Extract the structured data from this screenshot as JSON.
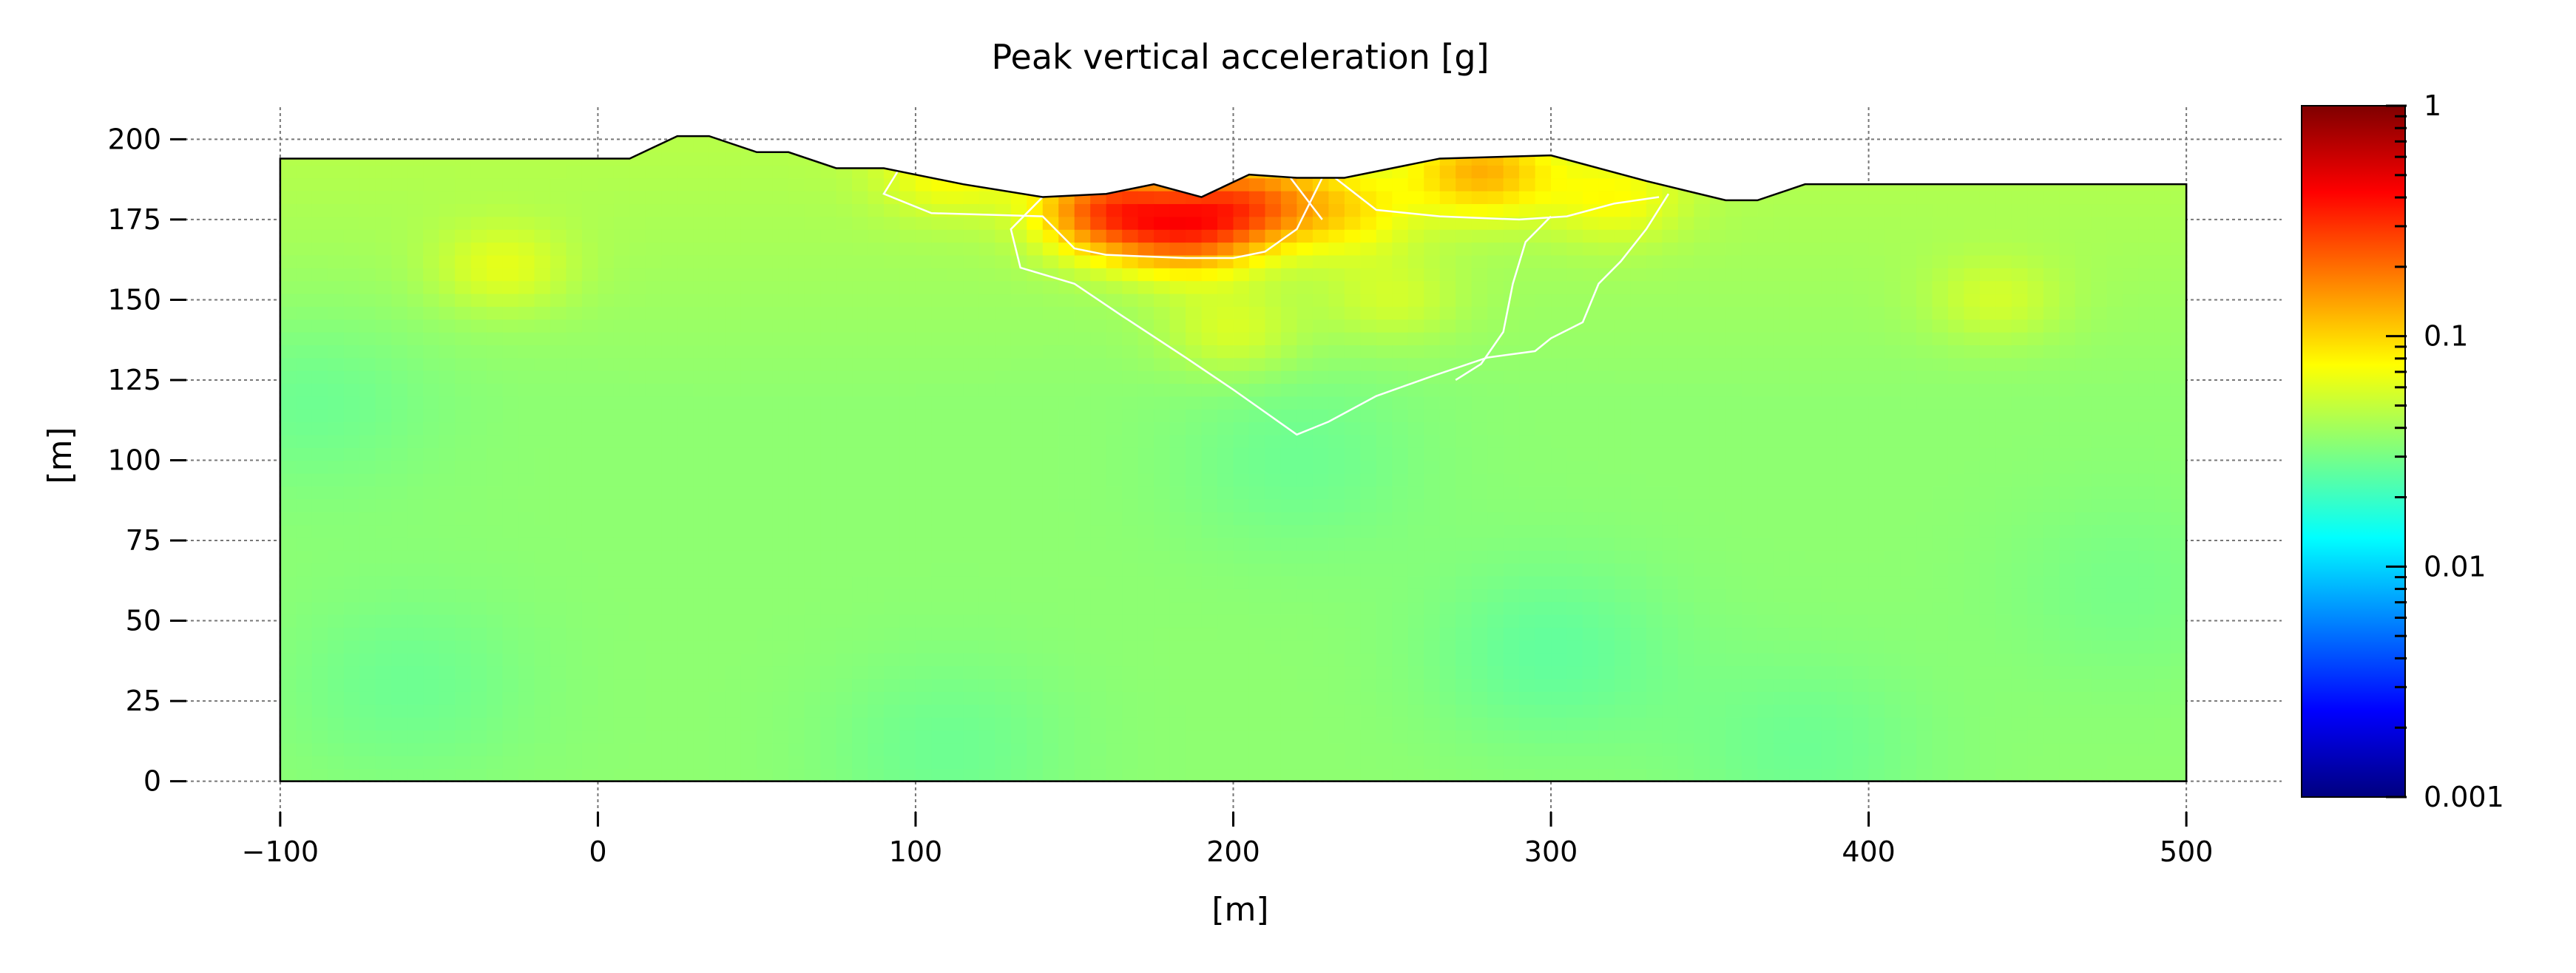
{
  "chart_data": {
    "type": "heatmap",
    "title": "Peak vertical acceleration [g]",
    "xlabel": "[m]",
    "ylabel": "[m]",
    "xlim": [
      -130,
      530
    ],
    "ylim": [
      -10,
      210
    ],
    "x_ticks": [
      -100,
      0,
      100,
      200,
      300,
      400,
      500
    ],
    "y_ticks": [
      0,
      25,
      50,
      75,
      100,
      125,
      150,
      175,
      200
    ],
    "x_tick_labels": [
      "−100",
      "0",
      "100",
      "200",
      "300",
      "400",
      "500"
    ],
    "y_tick_labels": [
      "0",
      "25",
      "50",
      "75",
      "100",
      "125",
      "150",
      "175",
      "200"
    ],
    "grid": true,
    "colormap": "jet",
    "color_scale": "log",
    "colorbar": {
      "min": 0.001,
      "max": 1,
      "ticks": [
        1,
        0.1,
        0.01,
        0.001
      ],
      "tick_labels": [
        "1",
        "0.1",
        "0.01",
        "0.001"
      ],
      "placement": "right"
    },
    "domain_x_range": [
      -100,
      500
    ],
    "domain_y_range": [
      0,
      194
    ],
    "surface_profile": [
      [
        -100,
        194
      ],
      [
        10,
        194
      ],
      [
        25,
        201
      ],
      [
        35,
        201
      ],
      [
        50,
        196
      ],
      [
        60,
        196
      ],
      [
        75,
        191
      ],
      [
        90,
        191
      ],
      [
        115,
        186
      ],
      [
        140,
        182
      ],
      [
        160,
        183
      ],
      [
        175,
        186
      ],
      [
        190,
        182
      ],
      [
        205,
        189
      ],
      [
        220,
        188
      ],
      [
        235,
        188
      ],
      [
        265,
        194
      ],
      [
        300,
        195
      ],
      [
        330,
        187
      ],
      [
        355,
        181
      ],
      [
        365,
        181
      ],
      [
        380,
        186
      ],
      [
        500,
        186
      ]
    ],
    "zone_boundaries": [
      [
        [
          95,
          191
        ],
        [
          90,
          183
        ],
        [
          105,
          177
        ],
        [
          140,
          176
        ],
        [
          150,
          166
        ],
        [
          160,
          164
        ],
        [
          185,
          163
        ],
        [
          200,
          163
        ],
        [
          210,
          165
        ],
        [
          220,
          172
        ],
        [
          228,
          188
        ]
      ],
      [
        [
          140,
          182
        ],
        [
          130,
          172
        ],
        [
          133,
          160
        ],
        [
          150,
          155
        ],
        [
          165,
          145
        ],
        [
          185,
          132
        ],
        [
          200,
          122
        ],
        [
          210,
          115
        ],
        [
          220,
          108
        ],
        [
          230,
          112
        ],
        [
          245,
          120
        ],
        [
          262,
          126
        ],
        [
          280,
          132
        ],
        [
          295,
          134
        ],
        [
          300,
          138
        ],
        [
          310,
          143
        ],
        [
          315,
          155
        ],
        [
          322,
          162
        ],
        [
          330,
          172
        ],
        [
          337,
          183
        ]
      ],
      [
        [
          232,
          188
        ],
        [
          245,
          178
        ],
        [
          265,
          176
        ],
        [
          290,
          175
        ],
        [
          305,
          176
        ],
        [
          320,
          180
        ],
        [
          334,
          182
        ]
      ],
      [
        [
          218,
          188
        ],
        [
          228,
          175
        ]
      ],
      [
        [
          300,
          176
        ],
        [
          292,
          168
        ],
        [
          288,
          155
        ],
        [
          285,
          140
        ],
        [
          278,
          130
        ],
        [
          270,
          125
        ]
      ]
    ],
    "values": {
      "background": 0.035,
      "hotspots": [
        [
          160,
          178,
          0.18
        ],
        [
          185,
          172,
          0.15
        ],
        [
          205,
          180,
          0.13
        ],
        [
          278,
          190,
          0.1
        ],
        [
          235,
          178,
          0.07
        ],
        [
          320,
          182,
          0.06
        ],
        [
          -30,
          160,
          0.055
        ],
        [
          440,
          150,
          0.05
        ],
        [
          110,
          190,
          0.06
        ],
        [
          250,
          150,
          0.05
        ],
        [
          200,
          140,
          0.055
        ]
      ],
      "coldspots": [
        [
          -90,
          120,
          0.028
        ],
        [
          300,
          40,
          0.026
        ],
        [
          220,
          100,
          0.028
        ],
        [
          -60,
          30,
          0.028
        ],
        [
          480,
          60,
          0.03
        ],
        [
          110,
          10,
          0.028
        ],
        [
          380,
          10,
          0.028
        ]
      ]
    }
  }
}
